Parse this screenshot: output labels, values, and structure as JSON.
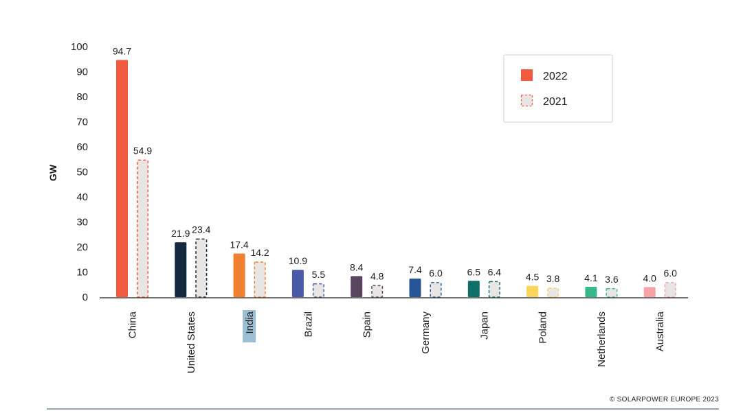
{
  "chart_data": {
    "type": "bar",
    "ylabel": "GW",
    "xlabel": "",
    "ylim": [
      0,
      100
    ],
    "yticks": [
      0,
      10,
      20,
      30,
      40,
      50,
      60,
      70,
      80,
      90,
      100
    ],
    "categories": [
      "China",
      "United States",
      "India",
      "Brazil",
      "Spain",
      "Germany",
      "Japan",
      "Poland",
      "Netherlands",
      "Australia"
    ],
    "category_colors": [
      "#f15a3f",
      "#14283f",
      "#f08030",
      "#4a5aa8",
      "#5a4560",
      "#265695",
      "#0e6e6a",
      "#fbd55a",
      "#36b98a",
      "#f5a3a6"
    ],
    "highlighted_category": "India",
    "highlight_color": "#9cbfd6",
    "series": [
      {
        "name": "2022",
        "style": "solid",
        "values": [
          94.7,
          21.9,
          17.4,
          10.9,
          8.4,
          7.4,
          6.5,
          4.5,
          4.1,
          4.0
        ],
        "labels": [
          "94.7",
          "21.9",
          "17.4",
          "10.9",
          "8.4",
          "7.4",
          "6.5",
          "4.5",
          "4.1",
          "4.0"
        ]
      },
      {
        "name": "2021",
        "style": "dashed",
        "fill": "#e8e6e4",
        "values": [
          54.9,
          23.4,
          14.2,
          5.5,
          4.8,
          6.0,
          6.4,
          3.8,
          3.6,
          6.0
        ],
        "labels": [
          "54.9",
          "23.4",
          "14.2",
          "5.5",
          "4.8",
          "6.0",
          "6.4",
          "3.8",
          "3.6",
          "6.0"
        ]
      }
    ],
    "legend": {
      "position": "top-right",
      "items": [
        {
          "label": "2022",
          "swatch": "solid",
          "color": "#f15a3f"
        },
        {
          "label": "2021",
          "swatch": "dashed",
          "color": "#f15a3f"
        }
      ]
    },
    "grid": false
  },
  "footer": {
    "copyright": "© SOLARPOWER EUROPE 2023",
    "rule_color": "#2f4f4f"
  }
}
